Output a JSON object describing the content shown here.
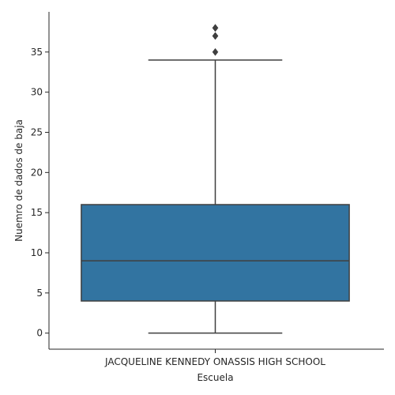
{
  "chart_data": {
    "type": "box",
    "title": "",
    "xlabel": "Escuela",
    "ylabel": "Nuemro de dados de baja",
    "categories": [
      "JACQUELINE KENNEDY ONASSIS HIGH SCHOOL"
    ],
    "ylim": [
      -2,
      40
    ],
    "yticks": [
      0,
      5,
      10,
      15,
      20,
      25,
      30,
      35
    ],
    "grid": false,
    "box": {
      "whisker_low": 0,
      "q1": 4,
      "median": 9,
      "q3": 16,
      "whisker_high": 34,
      "outliers": [
        35,
        37,
        37,
        38,
        38
      ]
    },
    "colors": {
      "box_fill": "#3274a1",
      "line": "#3f3f3f",
      "axis": "#262626"
    }
  }
}
